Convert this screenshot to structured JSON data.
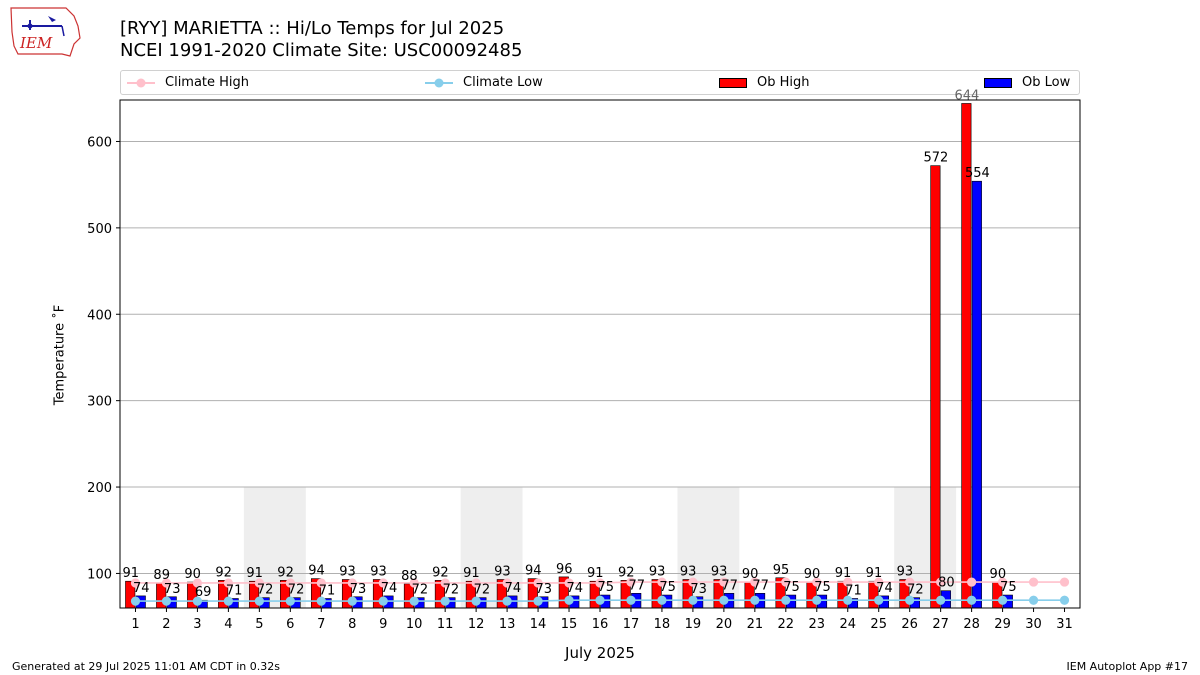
{
  "header": {
    "logo_text": "IEM",
    "title_line1": "[RYY] MARIETTA :: Hi/Lo Temps for Jul 2025",
    "title_line2": "NCEI 1991-2020 Climate Site: USC00092485"
  },
  "legend": {
    "climate_high": "Climate High",
    "climate_low": "Climate Low",
    "ob_high": "Ob High",
    "ob_low": "Ob Low"
  },
  "footer": {
    "generated": "Generated at 29 Jul 2025 11:01 AM CDT in 0.32s",
    "app": "IEM Autoplot App #17"
  },
  "colors": {
    "ob_high": "#ff0000",
    "ob_low": "#0000ff",
    "climate_high": "#ffc0cb",
    "climate_low": "#87ceeb",
    "weekend_shade": "#eeeeee",
    "grid": "#b0b0b0"
  },
  "chart_data": {
    "type": "bar",
    "xlabel": "July 2025",
    "ylabel": "Temperature ˚F",
    "ylim": [
      60,
      648
    ],
    "yticks": [
      100,
      200,
      300,
      400,
      500,
      600
    ],
    "grid": true,
    "legend_position": "top",
    "x": [
      1,
      2,
      3,
      4,
      5,
      6,
      7,
      8,
      9,
      10,
      11,
      12,
      13,
      14,
      15,
      16,
      17,
      18,
      19,
      20,
      21,
      22,
      23,
      24,
      25,
      26,
      27,
      28,
      29,
      30,
      31
    ],
    "weekend_spans": [
      [
        5,
        6
      ],
      [
        12,
        13
      ],
      [
        19,
        20
      ],
      [
        26,
        27
      ]
    ],
    "weekend_shade_top": 200,
    "series": [
      {
        "name": "Ob High",
        "type": "bar",
        "values": [
          91,
          89,
          90,
          92,
          91,
          92,
          94,
          93,
          93,
          88,
          92,
          91,
          93,
          94,
          96,
          91,
          92,
          93,
          93,
          93,
          90,
          95,
          90,
          91,
          91,
          93,
          572,
          644,
          90,
          null,
          null
        ]
      },
      {
        "name": "Ob Low",
        "type": "bar",
        "values": [
          74,
          73,
          69,
          71,
          72,
          72,
          71,
          73,
          74,
          72,
          72,
          72,
          74,
          73,
          74,
          75,
          77,
          75,
          73,
          77,
          77,
          75,
          75,
          71,
          74,
          72,
          80,
          554,
          75,
          null,
          null
        ]
      },
      {
        "name": "Climate High",
        "type": "line",
        "values": [
          89,
          89,
          89,
          89,
          89,
          89,
          89,
          89,
          89,
          89,
          89,
          89,
          89,
          89,
          89,
          89,
          90,
          90,
          90,
          90,
          90,
          90,
          90,
          90,
          90,
          90,
          90,
          90,
          90,
          90,
          90
        ]
      },
      {
        "name": "Climate Low",
        "type": "line",
        "values": [
          68,
          68,
          68,
          68,
          68,
          68,
          68,
          68,
          68,
          68,
          68,
          68,
          68,
          68,
          69,
          69,
          69,
          69,
          69,
          69,
          69,
          69,
          69,
          69,
          69,
          69,
          69,
          69,
          69,
          69,
          69
        ]
      }
    ]
  }
}
